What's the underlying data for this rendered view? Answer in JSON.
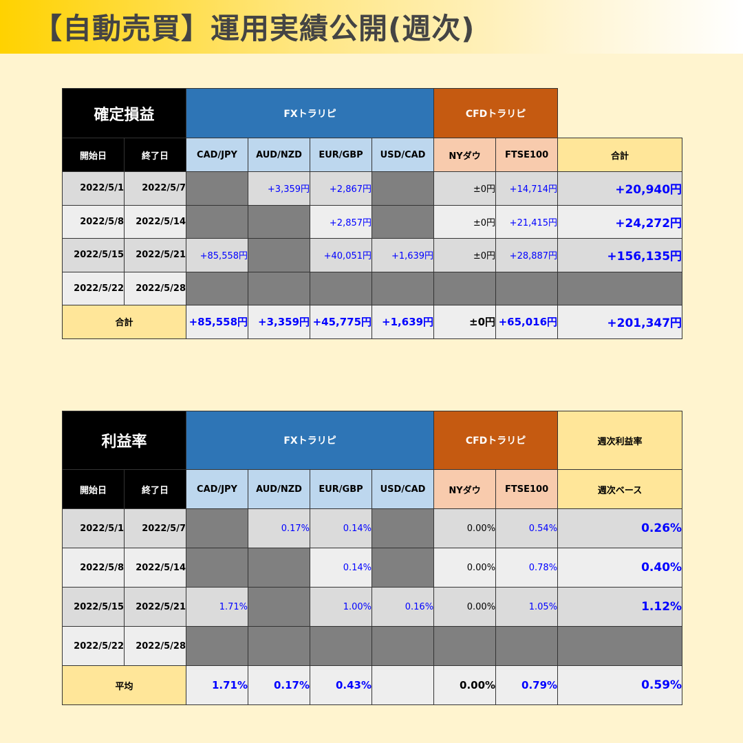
{
  "title": "【自動売買】運用実績公開(週次)",
  "colors": {
    "fx": "#2e75b6",
    "cfd": "#c55a11",
    "fx_header": "#bdd7ee",
    "cfd_header": "#f8cbad",
    "total": "#ffe699",
    "empty_cell": "#808080",
    "value": "#0000ff"
  },
  "profit_table": {
    "title": "確定損益",
    "group_fx": "FXトラリピ",
    "group_cfd": "CFDトラリピ",
    "col_start": "開始日",
    "col_end": "終了日",
    "columns": [
      "CAD/JPY",
      "AUD/NZD",
      "EUR/GBP",
      "USD/CAD",
      "NYダウ",
      "FTSE100"
    ],
    "total_header": "合計",
    "rows": [
      {
        "start": "2022/5/1",
        "end": "2022/5/7",
        "values": [
          null,
          "+3,359円",
          "+2,867円",
          null,
          "±0円",
          "+14,714円"
        ],
        "total": "+20,940円"
      },
      {
        "start": "2022/5/8",
        "end": "2022/5/14",
        "values": [
          null,
          null,
          "+2,857円",
          null,
          "±0円",
          "+21,415円"
        ],
        "total": "+24,272円"
      },
      {
        "start": "2022/5/15",
        "end": "2022/5/21",
        "values": [
          "+85,558円",
          null,
          "+40,051円",
          "+1,639円",
          "±0円",
          "+28,887円"
        ],
        "total": "+156,135円"
      },
      {
        "start": "2022/5/22",
        "end": "2022/5/28",
        "values": [
          null,
          null,
          null,
          null,
          null,
          null
        ],
        "total": null
      }
    ],
    "summary": {
      "label": "合計",
      "values": [
        "+85,558円",
        "+3,359円",
        "+45,775円",
        "+1,639円",
        "±0円",
        "+65,016円"
      ],
      "total": "+201,347円"
    }
  },
  "rate_table": {
    "title": "利益率",
    "group_fx": "FXトラリピ",
    "group_cfd": "CFDトラリピ",
    "total_group": "週次利益率",
    "col_start": "開始日",
    "col_end": "終了日",
    "columns": [
      "CAD/JPY",
      "AUD/NZD",
      "EUR/GBP",
      "USD/CAD",
      "NYダウ",
      "FTSE100"
    ],
    "total_header": "週次ベース",
    "rows": [
      {
        "start": "2022/5/1",
        "end": "2022/5/7",
        "values": [
          null,
          "0.17%",
          "0.14%",
          null,
          "0.00%",
          "0.54%"
        ],
        "total": "0.26%"
      },
      {
        "start": "2022/5/8",
        "end": "2022/5/14",
        "values": [
          null,
          null,
          "0.14%",
          null,
          "0.00%",
          "0.78%"
        ],
        "total": "0.40%"
      },
      {
        "start": "2022/5/15",
        "end": "2022/5/21",
        "values": [
          "1.71%",
          null,
          "1.00%",
          "0.16%",
          "0.00%",
          "1.05%"
        ],
        "total": "1.12%"
      },
      {
        "start": "2022/5/22",
        "end": "2022/5/28",
        "values": [
          null,
          null,
          null,
          null,
          null,
          null
        ],
        "total": null
      }
    ],
    "summary": {
      "label": "平均",
      "values": [
        "1.71%",
        "0.17%",
        "0.43%",
        "",
        "0.00%",
        "0.79%"
      ],
      "total": "0.59%"
    }
  }
}
